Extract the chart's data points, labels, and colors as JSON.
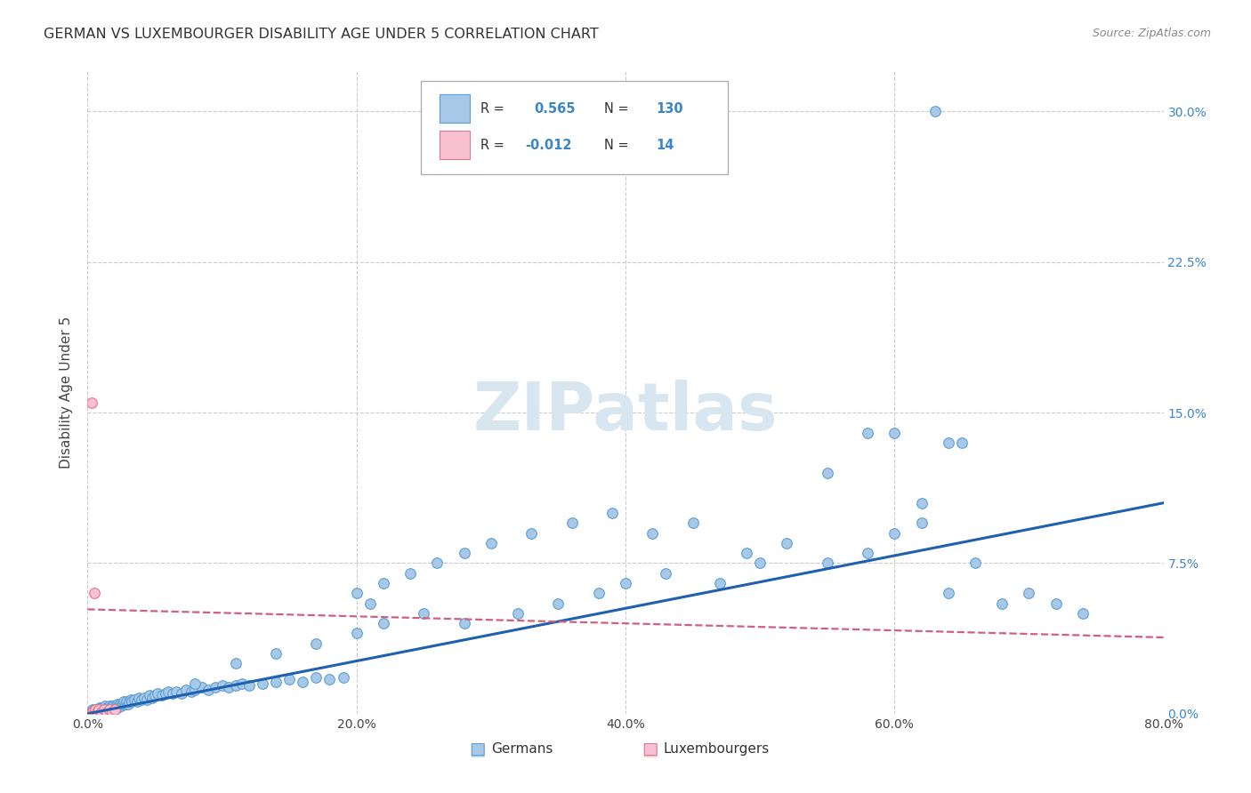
{
  "title": "GERMAN VS LUXEMBOURGER DISABILITY AGE UNDER 5 CORRELATION CHART",
  "source": "Source: ZipAtlas.com",
  "ylabel": "Disability Age Under 5",
  "legend_labels": [
    "Germans",
    "Luxembourgers"
  ],
  "german_R": 0.565,
  "german_N": 130,
  "luxembourger_R": -0.012,
  "luxembourger_N": 14,
  "xlim": [
    0.0,
    0.8
  ],
  "ylim": [
    0.0,
    0.32
  ],
  "xticks": [
    0.0,
    0.2,
    0.4,
    0.6,
    0.8
  ],
  "xtick_labels": [
    "0.0%",
    "20.0%",
    "40.0%",
    "60.0%",
    "80.0%"
  ],
  "yticks": [
    0.0,
    0.075,
    0.15,
    0.225,
    0.3
  ],
  "ytick_labels": [
    "0.0%",
    "7.5%",
    "15.0%",
    "22.5%",
    "30.0%"
  ],
  "color_german_fill": "#a8c8e8",
  "color_german_edge": "#5a9fd4",
  "color_luxembourger_fill": "#f8c0d0",
  "color_luxembourger_edge": "#e07890",
  "color_german_line": "#2060b0",
  "color_luxembourger_line": "#d06080",
  "background_color": "#ffffff",
  "grid_color": "#cccccc",
  "title_fontsize": 11.5,
  "axis_fontsize": 10,
  "tick_color": "#3a86c8",
  "watermark_color": "#d8e6f0",
  "german_x": [
    0.003,
    0.004,
    0.004,
    0.005,
    0.005,
    0.006,
    0.006,
    0.006,
    0.007,
    0.007,
    0.008,
    0.008,
    0.009,
    0.009,
    0.009,
    0.01,
    0.01,
    0.011,
    0.011,
    0.011,
    0.012,
    0.012,
    0.013,
    0.013,
    0.014,
    0.014,
    0.015,
    0.015,
    0.016,
    0.016,
    0.017,
    0.018,
    0.018,
    0.019,
    0.019,
    0.02,
    0.021,
    0.022,
    0.022,
    0.023,
    0.024,
    0.025,
    0.026,
    0.027,
    0.028,
    0.029,
    0.03,
    0.031,
    0.032,
    0.033,
    0.035,
    0.037,
    0.038,
    0.04,
    0.042,
    0.044,
    0.046,
    0.048,
    0.05,
    0.052,
    0.055,
    0.058,
    0.06,
    0.063,
    0.066,
    0.07,
    0.073,
    0.077,
    0.08,
    0.085,
    0.09,
    0.095,
    0.1,
    0.105,
    0.11,
    0.115,
    0.12,
    0.13,
    0.14,
    0.15,
    0.16,
    0.17,
    0.18,
    0.19,
    0.2,
    0.21,
    0.22,
    0.24,
    0.26,
    0.28,
    0.3,
    0.33,
    0.36,
    0.39,
    0.42,
    0.45,
    0.49,
    0.52,
    0.55,
    0.58,
    0.6,
    0.62,
    0.63,
    0.64,
    0.65,
    0.66,
    0.68,
    0.7,
    0.72,
    0.74,
    0.6,
    0.58,
    0.62,
    0.55,
    0.64,
    0.5,
    0.47,
    0.43,
    0.4,
    0.38,
    0.35,
    0.32,
    0.28,
    0.25,
    0.22,
    0.2,
    0.17,
    0.14,
    0.11,
    0.08
  ],
  "german_y": [
    0.001,
    0.001,
    0.002,
    0.001,
    0.002,
    0.001,
    0.002,
    0.001,
    0.002,
    0.001,
    0.002,
    0.001,
    0.002,
    0.003,
    0.001,
    0.002,
    0.003,
    0.002,
    0.003,
    0.001,
    0.002,
    0.003,
    0.002,
    0.004,
    0.003,
    0.002,
    0.003,
    0.002,
    0.003,
    0.004,
    0.003,
    0.004,
    0.002,
    0.003,
    0.004,
    0.003,
    0.004,
    0.005,
    0.003,
    0.004,
    0.005,
    0.004,
    0.005,
    0.006,
    0.005,
    0.006,
    0.005,
    0.006,
    0.007,
    0.006,
    0.007,
    0.006,
    0.008,
    0.007,
    0.008,
    0.007,
    0.009,
    0.008,
    0.009,
    0.01,
    0.009,
    0.01,
    0.011,
    0.01,
    0.011,
    0.01,
    0.012,
    0.011,
    0.012,
    0.013,
    0.012,
    0.013,
    0.014,
    0.013,
    0.014,
    0.015,
    0.014,
    0.015,
    0.016,
    0.017,
    0.016,
    0.018,
    0.017,
    0.018,
    0.06,
    0.055,
    0.065,
    0.07,
    0.075,
    0.08,
    0.085,
    0.09,
    0.095,
    0.1,
    0.09,
    0.095,
    0.08,
    0.085,
    0.075,
    0.08,
    0.09,
    0.095,
    0.3,
    0.135,
    0.135,
    0.075,
    0.055,
    0.06,
    0.055,
    0.05,
    0.14,
    0.14,
    0.105,
    0.12,
    0.06,
    0.075,
    0.065,
    0.07,
    0.065,
    0.06,
    0.055,
    0.05,
    0.045,
    0.05,
    0.045,
    0.04,
    0.035,
    0.03,
    0.025,
    0.015
  ],
  "luxembourger_x": [
    0.003,
    0.004,
    0.005,
    0.006,
    0.007,
    0.008,
    0.01,
    0.012,
    0.014,
    0.016,
    0.018,
    0.02,
    0.003,
    0.005
  ],
  "luxembourger_y": [
    0.001,
    0.001,
    0.001,
    0.002,
    0.001,
    0.002,
    0.001,
    0.002,
    0.001,
    0.002,
    0.001,
    0.002,
    0.155,
    0.06
  ],
  "blue_line_x": [
    0.0,
    0.8
  ],
  "blue_line_y": [
    0.0,
    0.105
  ],
  "pink_line_x": [
    0.0,
    0.8
  ],
  "pink_line_y": [
    0.052,
    0.038
  ]
}
